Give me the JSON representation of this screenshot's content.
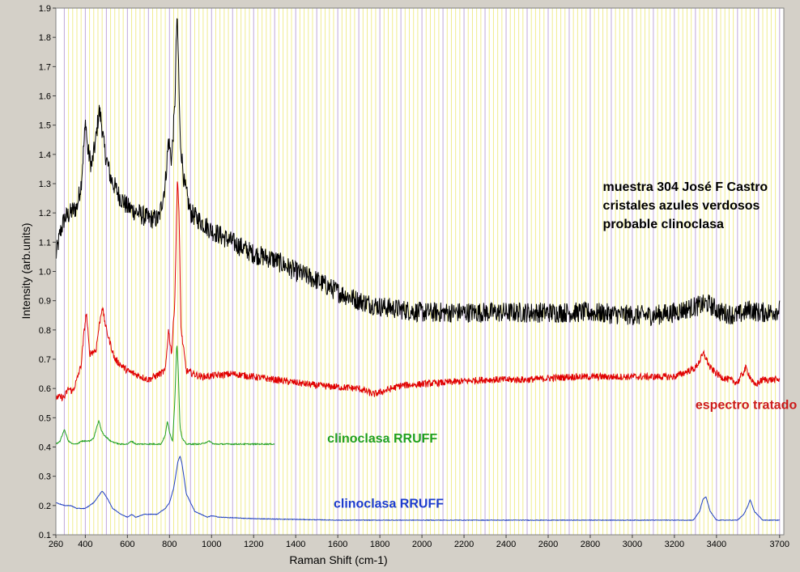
{
  "chart_data": {
    "type": "line",
    "xlabel": "Raman Shift (cm-1)",
    "ylabel": "Intensity (arb.units)",
    "xlim": [
      260,
      3720
    ],
    "ylim": [
      0.1,
      1.9
    ],
    "x_ticks": [
      "260",
      "400",
      "600",
      "800",
      "1000",
      "1200",
      "1400",
      "1600",
      "1800",
      "2000",
      "2200",
      "2400",
      "2600",
      "2800",
      "3000",
      "3200",
      "3400",
      "3700"
    ],
    "y_ticks": [
      "0.1",
      "0.2",
      "0.3",
      "0.4",
      "0.5",
      "0.6",
      "0.7",
      "0.8",
      "0.9",
      "1.0",
      "1.1",
      "1.2",
      "1.3",
      "1.4",
      "1.5",
      "1.6",
      "1.7",
      "1.8",
      "1.9"
    ],
    "grid": true,
    "colors": {
      "plot_bg": "#ffffff",
      "frame_bg": "#d4d0c8",
      "major_grid": "#c0a8d8",
      "minor_grid": "#f0ec90"
    },
    "series": [
      {
        "color": "#000000",
        "noise": 0.035,
        "x": [
          260,
          280,
          300,
          330,
          360,
          380,
          395,
          402,
          410,
          430,
          450,
          465,
          475,
          490,
          520,
          560,
          600,
          650,
          700,
          750,
          780,
          795,
          810,
          825,
          835,
          842,
          850,
          870,
          900,
          1000,
          1100,
          1200,
          1300,
          1400,
          1500,
          1600,
          1700,
          1800,
          1900,
          2000,
          2100,
          2200,
          2400,
          2600,
          2800,
          3000,
          3100,
          3200,
          3300,
          3360,
          3420,
          3500,
          3560,
          3600,
          3650,
          3700
        ],
        "y": [
          1.05,
          1.13,
          1.18,
          1.2,
          1.22,
          1.3,
          1.45,
          1.52,
          1.42,
          1.36,
          1.45,
          1.55,
          1.52,
          1.42,
          1.32,
          1.26,
          1.22,
          1.2,
          1.18,
          1.18,
          1.3,
          1.45,
          1.38,
          1.56,
          1.87,
          1.74,
          1.46,
          1.3,
          1.2,
          1.14,
          1.1,
          1.06,
          1.04,
          1.0,
          0.97,
          0.93,
          0.9,
          0.88,
          0.87,
          0.86,
          0.86,
          0.86,
          0.86,
          0.86,
          0.86,
          0.85,
          0.85,
          0.86,
          0.88,
          0.89,
          0.86,
          0.85,
          0.87,
          0.86,
          0.86,
          0.87
        ]
      },
      {
        "color": "#e00000",
        "noise": 0.012,
        "x": [
          260,
          300,
          320,
          340,
          360,
          380,
          395,
          405,
          420,
          450,
          465,
          480,
          500,
          540,
          600,
          700,
          780,
          795,
          810,
          825,
          838,
          845,
          855,
          880,
          950,
          1100,
          1300,
          1500,
          1700,
          1770,
          1900,
          2100,
          2300,
          2500,
          2700,
          3000,
          3200,
          3300,
          3340,
          3370,
          3420,
          3500,
          3540,
          3580,
          3620,
          3700
        ],
        "y": [
          0.57,
          0.57,
          0.6,
          0.59,
          0.63,
          0.68,
          0.8,
          0.86,
          0.72,
          0.73,
          0.81,
          0.88,
          0.8,
          0.7,
          0.66,
          0.63,
          0.66,
          0.8,
          0.72,
          0.9,
          1.33,
          1.2,
          0.8,
          0.66,
          0.64,
          0.65,
          0.63,
          0.61,
          0.6,
          0.58,
          0.61,
          0.62,
          0.63,
          0.63,
          0.64,
          0.64,
          0.64,
          0.67,
          0.72,
          0.67,
          0.64,
          0.62,
          0.67,
          0.61,
          0.63,
          0.63
        ]
      },
      {
        "color": "#20a020",
        "noise": 0.002,
        "x": [
          260,
          280,
          300,
          320,
          340,
          360,
          380,
          420,
          440,
          455,
          465,
          475,
          490,
          520,
          560,
          600,
          620,
          640,
          700,
          760,
          780,
          790,
          800,
          815,
          825,
          835,
          842,
          850,
          860,
          880,
          950,
          990,
          1010,
          1100,
          1200,
          1300
        ],
        "y": [
          0.41,
          0.42,
          0.46,
          0.42,
          0.41,
          0.41,
          0.42,
          0.42,
          0.43,
          0.47,
          0.49,
          0.46,
          0.44,
          0.42,
          0.41,
          0.41,
          0.42,
          0.41,
          0.41,
          0.41,
          0.44,
          0.49,
          0.45,
          0.42,
          0.55,
          0.76,
          0.66,
          0.47,
          0.43,
          0.41,
          0.41,
          0.42,
          0.41,
          0.41,
          0.41,
          0.41
        ]
      },
      {
        "color": "#2040c0",
        "noise": 0.001,
        "x": [
          260,
          300,
          330,
          360,
          400,
          440,
          460,
          480,
          500,
          530,
          570,
          600,
          620,
          640,
          680,
          740,
          780,
          800,
          820,
          840,
          850,
          860,
          880,
          920,
          980,
          1000,
          1040,
          1200,
          1600,
          2000,
          2400,
          2800,
          3200,
          3290,
          3320,
          3335,
          3350,
          3370,
          3400,
          3500,
          3530,
          3550,
          3560,
          3580,
          3620,
          3700
        ],
        "y": [
          0.21,
          0.2,
          0.2,
          0.19,
          0.19,
          0.21,
          0.23,
          0.25,
          0.23,
          0.19,
          0.17,
          0.16,
          0.17,
          0.16,
          0.17,
          0.17,
          0.19,
          0.21,
          0.26,
          0.35,
          0.37,
          0.34,
          0.24,
          0.18,
          0.16,
          0.165,
          0.16,
          0.155,
          0.15,
          0.15,
          0.15,
          0.15,
          0.15,
          0.15,
          0.18,
          0.22,
          0.23,
          0.18,
          0.15,
          0.15,
          0.17,
          0.2,
          0.22,
          0.18,
          0.15,
          0.15
        ]
      }
    ],
    "annotations": [
      {
        "text": "muestra 304 José F Castro",
        "color": "#000000",
        "x": 2860,
        "y": 1.275
      },
      {
        "text": "cristales azules verdosos",
        "color": "#000000",
        "x": 2860,
        "y": 1.212
      },
      {
        "text": "probable clinoclasa",
        "color": "#000000",
        "x": 2860,
        "y": 1.148
      },
      {
        "text": "espectro tratado",
        "color": "#cc1a1a",
        "x": 3300,
        "y": 0.53
      },
      {
        "text": "clinoclasa RRUFF",
        "color": "#20a020",
        "x": 1550,
        "y": 0.415
      },
      {
        "text": "clinoclasa RRUFF",
        "color": "#1c3ccc",
        "x": 1580,
        "y": 0.193
      }
    ]
  }
}
